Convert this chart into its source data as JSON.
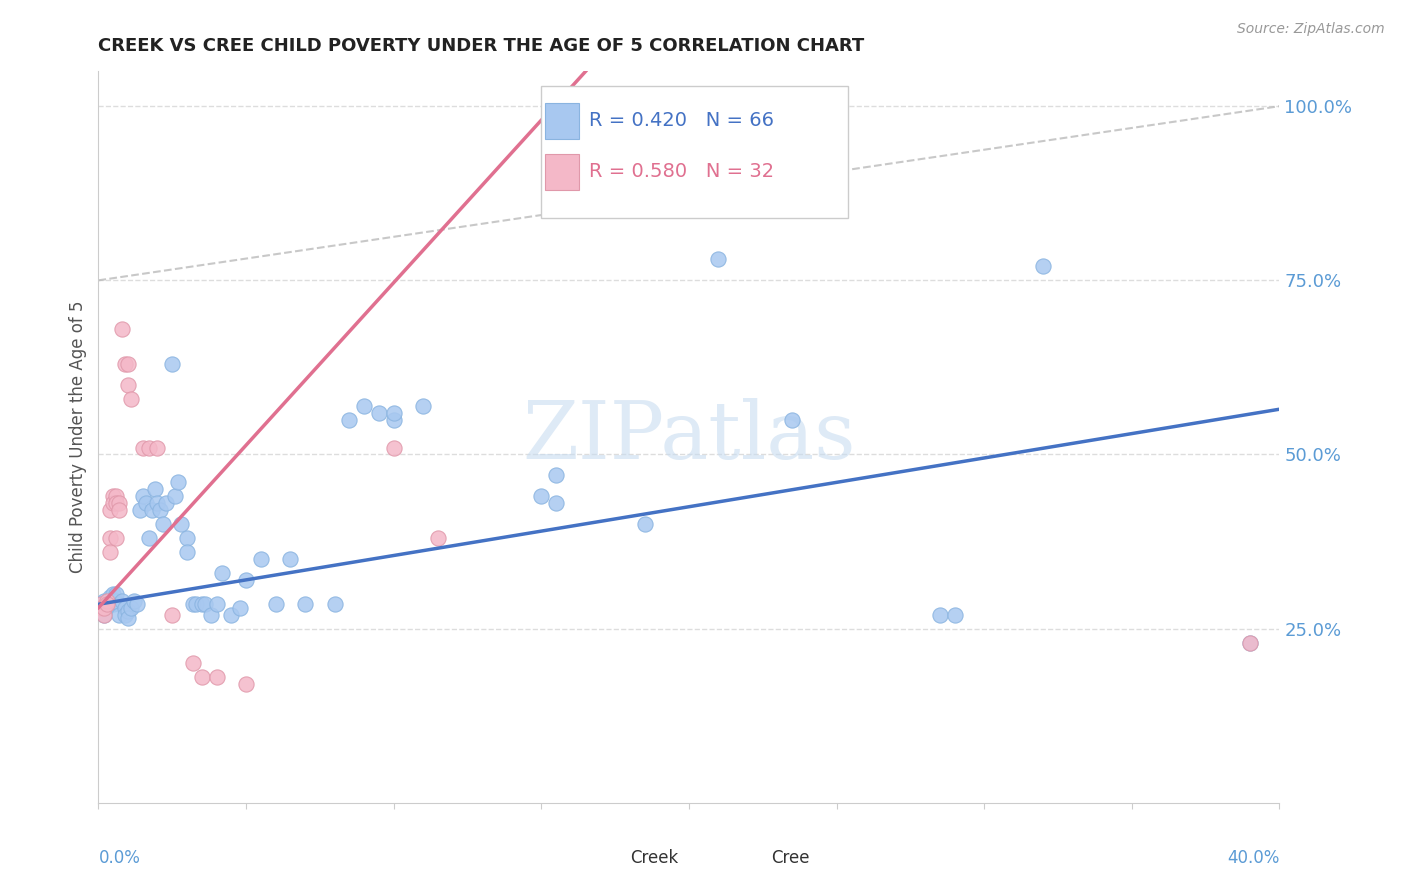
{
  "title": "CREEK VS CREE CHILD POVERTY UNDER THE AGE OF 5 CORRELATION CHART",
  "source": "Source: ZipAtlas.com",
  "ylabel": "Child Poverty Under the Age of 5",
  "xlim": [
    0,
    0.4
  ],
  "ylim": [
    0,
    1.05
  ],
  "ytick_positions": [
    0.25,
    0.5,
    0.75,
    1.0
  ],
  "ytick_labels": [
    "25.0%",
    "50.0%",
    "75.0%",
    "100.0%"
  ],
  "creek_color": "#A8C8F0",
  "cree_color": "#F4B8C8",
  "creek_line_color": "#4472C4",
  "cree_line_color": "#E07090",
  "creek_line": [
    0.0,
    0.285,
    0.4,
    0.565
  ],
  "cree_line": [
    0.0,
    0.28,
    0.165,
    1.05
  ],
  "diag_line": [
    [
      0.0,
      0.75
    ],
    [
      0.4,
      1.0
    ]
  ],
  "watermark": "ZIPatlas",
  "creek_points": [
    [
      0.001,
      0.285
    ],
    [
      0.002,
      0.27
    ],
    [
      0.002,
      0.29
    ],
    [
      0.003,
      0.285
    ],
    [
      0.004,
      0.295
    ],
    [
      0.005,
      0.3
    ],
    [
      0.005,
      0.285
    ],
    [
      0.006,
      0.29
    ],
    [
      0.006,
      0.3
    ],
    [
      0.007,
      0.285
    ],
    [
      0.007,
      0.27
    ],
    [
      0.008,
      0.29
    ],
    [
      0.009,
      0.28
    ],
    [
      0.009,
      0.27
    ],
    [
      0.01,
      0.275
    ],
    [
      0.01,
      0.265
    ],
    [
      0.011,
      0.28
    ],
    [
      0.012,
      0.29
    ],
    [
      0.013,
      0.285
    ],
    [
      0.014,
      0.42
    ],
    [
      0.015,
      0.44
    ],
    [
      0.016,
      0.43
    ],
    [
      0.017,
      0.38
    ],
    [
      0.018,
      0.42
    ],
    [
      0.019,
      0.45
    ],
    [
      0.02,
      0.43
    ],
    [
      0.021,
      0.42
    ],
    [
      0.022,
      0.4
    ],
    [
      0.023,
      0.43
    ],
    [
      0.025,
      0.63
    ],
    [
      0.026,
      0.44
    ],
    [
      0.027,
      0.46
    ],
    [
      0.028,
      0.4
    ],
    [
      0.03,
      0.38
    ],
    [
      0.03,
      0.36
    ],
    [
      0.032,
      0.285
    ],
    [
      0.033,
      0.285
    ],
    [
      0.035,
      0.285
    ],
    [
      0.036,
      0.285
    ],
    [
      0.038,
      0.27
    ],
    [
      0.04,
      0.285
    ],
    [
      0.042,
      0.33
    ],
    [
      0.045,
      0.27
    ],
    [
      0.048,
      0.28
    ],
    [
      0.05,
      0.32
    ],
    [
      0.055,
      0.35
    ],
    [
      0.06,
      0.285
    ],
    [
      0.065,
      0.35
    ],
    [
      0.07,
      0.285
    ],
    [
      0.08,
      0.285
    ],
    [
      0.085,
      0.55
    ],
    [
      0.09,
      0.57
    ],
    [
      0.095,
      0.56
    ],
    [
      0.1,
      0.55
    ],
    [
      0.1,
      0.56
    ],
    [
      0.11,
      0.57
    ],
    [
      0.15,
      0.44
    ],
    [
      0.155,
      0.47
    ],
    [
      0.155,
      0.43
    ],
    [
      0.185,
      0.4
    ],
    [
      0.21,
      0.78
    ],
    [
      0.235,
      0.55
    ],
    [
      0.285,
      0.27
    ],
    [
      0.29,
      0.27
    ],
    [
      0.32,
      0.77
    ],
    [
      0.39,
      0.23
    ]
  ],
  "cree_points": [
    [
      0.001,
      0.285
    ],
    [
      0.001,
      0.28
    ],
    [
      0.002,
      0.27
    ],
    [
      0.002,
      0.28
    ],
    [
      0.003,
      0.29
    ],
    [
      0.003,
      0.285
    ],
    [
      0.004,
      0.38
    ],
    [
      0.004,
      0.36
    ],
    [
      0.004,
      0.42
    ],
    [
      0.005,
      0.44
    ],
    [
      0.005,
      0.43
    ],
    [
      0.006,
      0.44
    ],
    [
      0.006,
      0.43
    ],
    [
      0.006,
      0.38
    ],
    [
      0.007,
      0.43
    ],
    [
      0.007,
      0.42
    ],
    [
      0.008,
      0.68
    ],
    [
      0.009,
      0.63
    ],
    [
      0.01,
      0.63
    ],
    [
      0.01,
      0.6
    ],
    [
      0.011,
      0.58
    ],
    [
      0.015,
      0.51
    ],
    [
      0.017,
      0.51
    ],
    [
      0.02,
      0.51
    ],
    [
      0.025,
      0.27
    ],
    [
      0.032,
      0.2
    ],
    [
      0.035,
      0.18
    ],
    [
      0.04,
      0.18
    ],
    [
      0.05,
      0.17
    ],
    [
      0.1,
      0.51
    ],
    [
      0.115,
      0.38
    ],
    [
      0.39,
      0.23
    ]
  ]
}
